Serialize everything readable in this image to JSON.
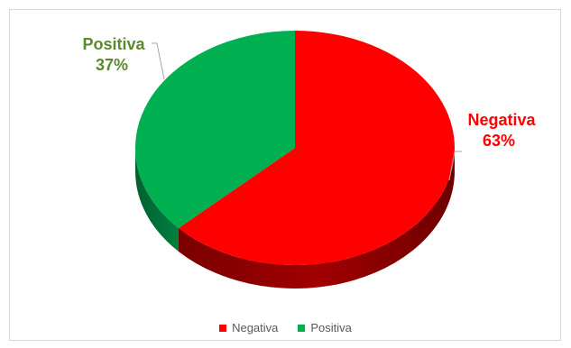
{
  "chart_data": {
    "type": "pie",
    "three_d": true,
    "title": "",
    "slices": [
      {
        "label": "Negativa",
        "value": 63,
        "display": "63%",
        "color": "#ff0000"
      },
      {
        "label": "Positiva",
        "value": 37,
        "display": "37%",
        "color": "#00b050"
      }
    ],
    "label_colors": {
      "Negativa": "#ff0000",
      "Positiva": "#5b8a2e"
    },
    "legend": {
      "position": "bottom",
      "items": [
        "Negativa",
        "Positiva"
      ]
    }
  }
}
